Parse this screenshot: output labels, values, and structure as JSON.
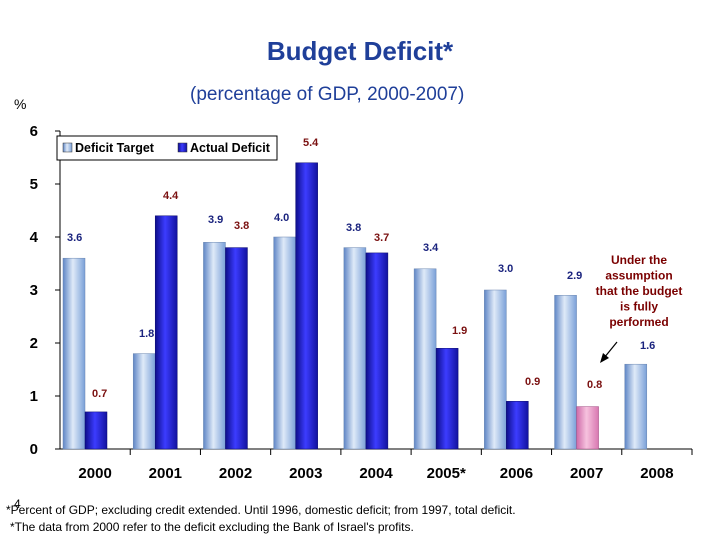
{
  "chart_data": {
    "type": "bar",
    "title": "Budget Deficit*",
    "subtitle": "(percentage of GDP, 2000-2007)",
    "ylabel": "%",
    "xlabel": "",
    "ylim": [
      0,
      6
    ],
    "yticks": [
      0,
      1,
      2,
      3,
      4,
      5,
      6
    ],
    "categories": [
      "2000",
      "2001",
      "2002",
      "2003",
      "2004",
      "2005*",
      "2006",
      "2007",
      "2008"
    ],
    "series": [
      {
        "name": "Deficit Target",
        "color": "#8fb4e0",
        "values": [
          3.6,
          1.8,
          3.9,
          4.0,
          3.8,
          3.4,
          3.0,
          2.9,
          1.6
        ],
        "labels": [
          "3.6",
          "1.8",
          "3.9",
          "4.0",
          "3.8",
          "3.4",
          "3.0",
          "2.9",
          "1.6"
        ],
        "label_color": "#1a237e"
      },
      {
        "name": "Actual Deficit",
        "color": "#1a1acc",
        "values": [
          0.7,
          4.4,
          3.8,
          5.4,
          3.7,
          1.9,
          0.9,
          0.8,
          null
        ],
        "labels": [
          "0.7",
          "4.4",
          "3.8",
          "5.4",
          "3.7",
          "1.9",
          "0.9",
          "0.8",
          ""
        ],
        "label_color": "#7a1010",
        "highlight": {
          "category": "2007",
          "color": "#e890c0"
        }
      }
    ],
    "annotation": "Under the assumption that the budget is fully performed",
    "legend": "top-left"
  },
  "footnotes": [
    "*Percent of GDP; excluding credit extended. Until 1996, domestic deficit; from 1997, total deficit.",
    "*The data from 2000 refer to the deficit excluding the Bank of Israel's profits."
  ],
  "slide_number": "4"
}
